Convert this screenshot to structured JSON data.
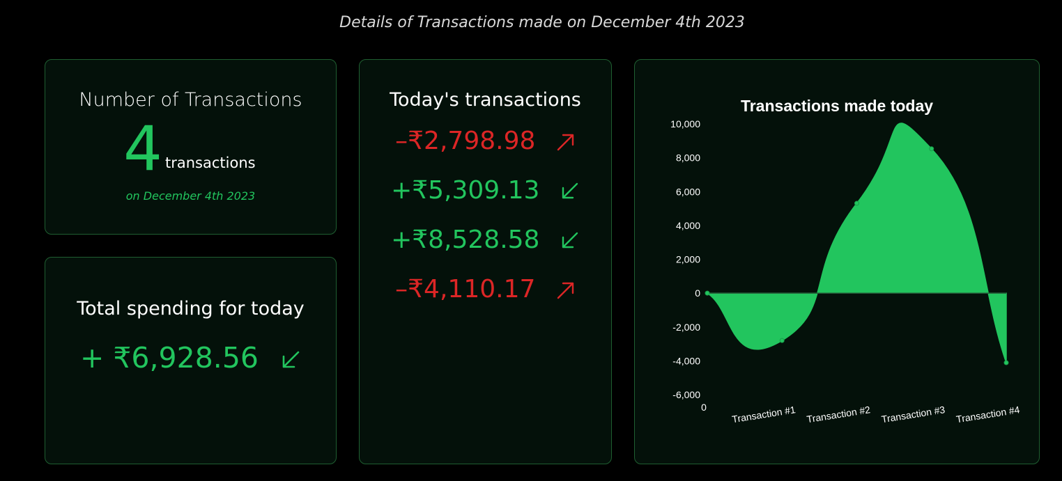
{
  "header": {
    "title": "Details of Transactions made on December 4th 2023"
  },
  "count_card": {
    "heading": "Number of Transactions",
    "count": "4",
    "unit": "transactions",
    "date": "on December 4th 2023"
  },
  "total_card": {
    "heading": "Total spending for today",
    "amount": "+ ₹6,928.56",
    "direction_icon": "arrow-down-left-icon"
  },
  "list_card": {
    "heading": "Today's transactions",
    "items": [
      {
        "amount": "–₹2,798.98",
        "type": "debit",
        "icon": "arrow-up-right-icon"
      },
      {
        "amount": "+₹5,309.13",
        "type": "credit",
        "icon": "arrow-down-left-icon"
      },
      {
        "amount": "+₹8,528.58",
        "type": "credit",
        "icon": "arrow-down-left-icon"
      },
      {
        "amount": "–₹4,110.17",
        "type": "debit",
        "icon": "arrow-up-right-icon"
      }
    ]
  },
  "colors": {
    "credit": "#22c55e",
    "debit": "#dc2626",
    "card_bg": "#04110a",
    "card_border": "#1f5f31"
  },
  "chart_data": {
    "type": "area",
    "title": "Transactions made today",
    "categories": [
      "0",
      "Transaction #1",
      "Transaction #2",
      "Transaction #3",
      "Transaction #4"
    ],
    "values": [
      0,
      -2798.98,
      5309.13,
      8528.58,
      -4110.17
    ],
    "yticks": [
      "10,000",
      "8,000",
      "6,000",
      "4,000",
      "2,000",
      "0",
      "-2,000",
      "-4,000",
      "-6,000"
    ],
    "ylim": [
      -6000,
      10000
    ],
    "fill_color": "#22c55e",
    "legend": "none",
    "grid": false
  }
}
